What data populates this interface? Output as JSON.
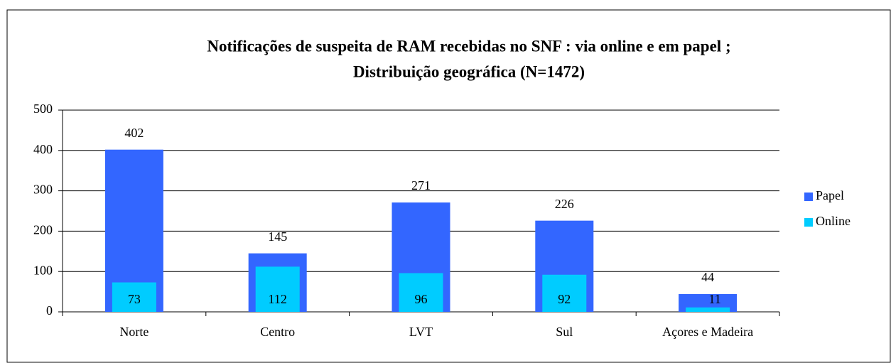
{
  "chart_data": {
    "type": "bar",
    "title": [
      "Notificações de suspeita de RAM recebidas no SNF : via online e em papel ;",
      "Distribuição geográfica (N=1472)"
    ],
    "categories": [
      "Norte",
      "Centro",
      "LVT",
      "Sul",
      "Açores e Madeira"
    ],
    "series": [
      {
        "name": "Papel",
        "color": "#3366ff",
        "values": [
          402,
          145,
          271,
          226,
          44
        ]
      },
      {
        "name": "Online",
        "color": "#00ccff",
        "values": [
          73,
          112,
          96,
          92,
          11
        ]
      }
    ],
    "ylim": [
      0,
      500
    ],
    "yticks": [
      0,
      100,
      200,
      300,
      400,
      500
    ],
    "grid": true,
    "legend": "right"
  }
}
